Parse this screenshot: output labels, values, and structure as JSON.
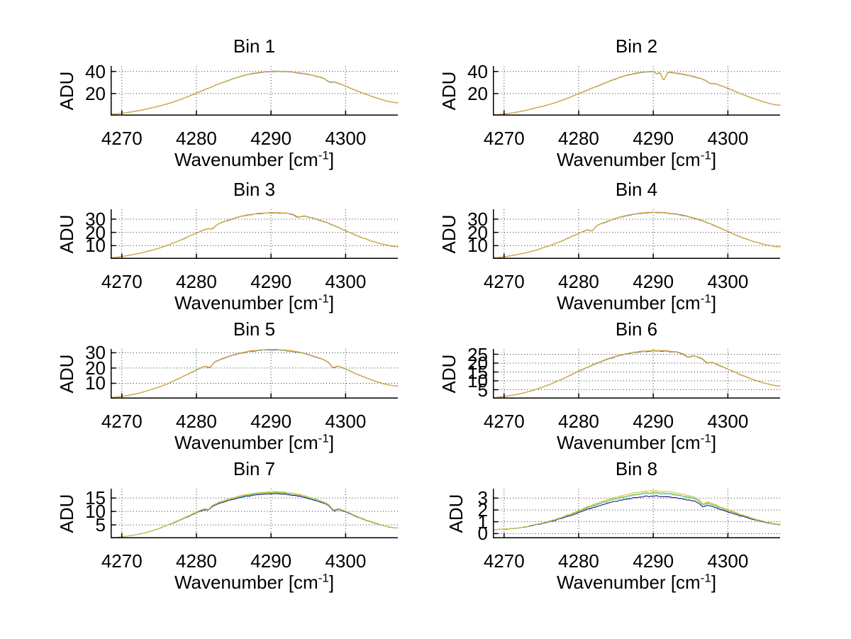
{
  "figure": {
    "background": "#ffffff"
  },
  "chart_data": [
    {
      "type": "line",
      "title": "Bin 1",
      "ylabel": "ADU",
      "xlabel": {
        "prefix": "Wavenumber [cm",
        "sup": "-1",
        "suffix": "]"
      },
      "xlim": [
        4268.5,
        4307
      ],
      "ylim": [
        0,
        45
      ],
      "x_ticks": [
        4270,
        4280,
        4290,
        4300
      ],
      "y_ticks": [
        20,
        40
      ],
      "grid": true,
      "envelope_x": [
        4268.5,
        4270,
        4272,
        4274,
        4276,
        4278,
        4280,
        4282,
        4284,
        4286,
        4288,
        4290,
        4292,
        4294,
        4296,
        4298,
        4300,
        4302,
        4304,
        4306,
        4307
      ],
      "envelope_y": [
        1.2,
        2.2,
        4.2,
        7.0,
        10.5,
        15.0,
        20.5,
        26.0,
        31.3,
        35.8,
        38.8,
        40.2,
        40.1,
        38.6,
        36.0,
        32.0,
        26.8,
        21.3,
        16.4,
        12.6,
        11.8
      ],
      "noise": 0.35,
      "dips": [
        {
          "x": 4297.8,
          "depth": 1.6,
          "width": 0.5
        }
      ],
      "series": [
        {
          "name": "navy",
          "color": "#17177e",
          "offset": -0.3
        },
        {
          "name": "cyan",
          "color": "#6fd8d8",
          "offset": -0.15
        },
        {
          "name": "green",
          "color": "#86c93e",
          "offset": -0.08
        },
        {
          "name": "orange",
          "color": "#e2a33c",
          "offset": 0
        }
      ]
    },
    {
      "type": "line",
      "title": "Bin 2",
      "ylabel": "ADU",
      "xlabel": {
        "prefix": "Wavenumber [cm",
        "sup": "-1",
        "suffix": "]"
      },
      "xlim": [
        4268.5,
        4307
      ],
      "ylim": [
        0,
        45
      ],
      "x_ticks": [
        4270,
        4280,
        4290,
        4300
      ],
      "y_ticks": [
        20,
        40
      ],
      "grid": true,
      "envelope_x": [
        4268.5,
        4270,
        4272,
        4274,
        4276,
        4278,
        4280,
        4282,
        4284,
        4286,
        4288,
        4290,
        4292,
        4294,
        4296,
        4298,
        4300,
        4302,
        4304,
        4306,
        4307
      ],
      "envelope_y": [
        0.8,
        1.5,
        3.5,
        6.5,
        10.0,
        14.5,
        20.0,
        25.5,
        31.0,
        35.8,
        38.8,
        40.2,
        39.6,
        37.6,
        34.5,
        30.0,
        24.8,
        19.2,
        14.3,
        10.4,
        9.5
      ],
      "noise": 0.4,
      "dips": [
        {
          "x": 4291.4,
          "depth": 7.5,
          "width": 0.35
        },
        {
          "x": 4290.5,
          "depth": 2.0,
          "width": 0.3
        },
        {
          "x": 4297.6,
          "depth": 1.6,
          "width": 0.5
        }
      ],
      "series": [
        {
          "name": "navy",
          "color": "#17177e",
          "offset": -0.3
        },
        {
          "name": "cyan",
          "color": "#6fd8d8",
          "offset": -0.15
        },
        {
          "name": "green",
          "color": "#86c93e",
          "offset": -0.08
        },
        {
          "name": "orange",
          "color": "#e2a33c",
          "offset": 0
        }
      ]
    },
    {
      "type": "line",
      "title": "Bin 3",
      "ylabel": "ADU",
      "xlabel": {
        "prefix": "Wavenumber [cm",
        "sup": "-1",
        "suffix": "]"
      },
      "xlim": [
        4268.5,
        4307
      ],
      "ylim": [
        0,
        37.5
      ],
      "x_ticks": [
        4270,
        4280,
        4290,
        4300
      ],
      "y_ticks": [
        10,
        20,
        30
      ],
      "grid": true,
      "envelope_x": [
        4268.5,
        4270,
        4272,
        4274,
        4276,
        4278,
        4280,
        4282,
        4284,
        4286,
        4288,
        4290,
        4292,
        4294,
        4296,
        4298,
        4300,
        4302,
        4304,
        4306,
        4307
      ],
      "envelope_y": [
        0.8,
        1.8,
        3.8,
        6.5,
        10.0,
        14.5,
        19.5,
        24.3,
        28.8,
        32.3,
        34.2,
        35.0,
        34.6,
        33.0,
        30.3,
        26.3,
        21.3,
        16.6,
        12.6,
        9.9,
        9.3
      ],
      "noise": 0.5,
      "dips": [
        {
          "x": 4282.1,
          "depth": 1.6,
          "width": 0.45
        },
        {
          "x": 4293.6,
          "depth": 1.8,
          "width": 0.5
        }
      ],
      "series": [
        {
          "name": "navy",
          "color": "#17177e",
          "offset": -0.3
        },
        {
          "name": "cyan",
          "color": "#6fd8d8",
          "offset": -0.15
        },
        {
          "name": "green",
          "color": "#86c93e",
          "offset": -0.08
        },
        {
          "name": "orange",
          "color": "#e2a33c",
          "offset": 0
        }
      ]
    },
    {
      "type": "line",
      "title": "Bin 4",
      "ylabel": "ADU",
      "xlabel": {
        "prefix": "Wavenumber [cm",
        "sup": "-1",
        "suffix": "]"
      },
      "xlim": [
        4268.5,
        4307
      ],
      "ylim": [
        0,
        37.5
      ],
      "x_ticks": [
        4270,
        4280,
        4290,
        4300
      ],
      "y_ticks": [
        10,
        20,
        30
      ],
      "grid": true,
      "envelope_x": [
        4268.5,
        4270,
        4272,
        4274,
        4276,
        4278,
        4280,
        4282,
        4284,
        4286,
        4288,
        4290,
        4292,
        4294,
        4296,
        4298,
        4300,
        4302,
        4304,
        4306,
        4307
      ],
      "envelope_y": [
        0.8,
        1.6,
        3.5,
        6.2,
        9.8,
        14.2,
        19.3,
        24.3,
        28.8,
        32.4,
        34.4,
        35.2,
        34.7,
        33.0,
        30.0,
        25.8,
        20.8,
        16.0,
        12.3,
        9.7,
        9.2
      ],
      "noise": 0.5,
      "dips": [
        {
          "x": 4281.8,
          "depth": 2.4,
          "width": 0.45
        }
      ],
      "series": [
        {
          "name": "navy",
          "color": "#17177e",
          "offset": -0.3
        },
        {
          "name": "cyan",
          "color": "#6fd8d8",
          "offset": -0.15
        },
        {
          "name": "green",
          "color": "#86c93e",
          "offset": -0.08
        },
        {
          "name": "orange",
          "color": "#e2a33c",
          "offset": 0
        }
      ]
    },
    {
      "type": "line",
      "title": "Bin 5",
      "ylabel": "ADU",
      "xlabel": {
        "prefix": "Wavenumber [cm",
        "sup": "-1",
        "suffix": "]"
      },
      "xlim": [
        4268.5,
        4307
      ],
      "ylim": [
        0,
        32.5
      ],
      "x_ticks": [
        4270,
        4280,
        4290,
        4300
      ],
      "y_ticks": [
        10,
        20,
        30
      ],
      "grid": true,
      "envelope_x": [
        4268.5,
        4270,
        4272,
        4274,
        4276,
        4278,
        4280,
        4282,
        4284,
        4286,
        4288,
        4290,
        4292,
        4294,
        4296,
        4298,
        4300,
        4302,
        4304,
        4306,
        4307
      ],
      "envelope_y": [
        0.7,
        1.5,
        3.2,
        6.0,
        9.5,
        14.0,
        18.8,
        23.3,
        27.2,
        30.1,
        31.6,
        32.1,
        31.7,
        30.2,
        27.4,
        23.7,
        19.4,
        15.1,
        11.4,
        8.8,
        8.3
      ],
      "noise": 0.45,
      "dips": [
        {
          "x": 4281.8,
          "depth": 2.2,
          "width": 0.45
        },
        {
          "x": 4298.3,
          "depth": 2.6,
          "width": 0.5
        }
      ],
      "series": [
        {
          "name": "navy",
          "color": "#17177e",
          "offset": -0.3
        },
        {
          "name": "cyan",
          "color": "#6fd8d8",
          "offset": -0.15
        },
        {
          "name": "green",
          "color": "#86c93e",
          "offset": -0.08
        },
        {
          "name": "orange",
          "color": "#e2a33c",
          "offset": 0
        }
      ]
    },
    {
      "type": "line",
      "title": "Bin 6",
      "ylabel": "ADU",
      "xlabel": {
        "prefix": "Wavenumber [cm",
        "sup": "-1",
        "suffix": "]"
      },
      "xlim": [
        4268.5,
        4307
      ],
      "ylim": [
        0,
        28
      ],
      "x_ticks": [
        4270,
        4280,
        4290,
        4300
      ],
      "y_ticks": [
        5,
        10,
        15,
        20,
        25
      ],
      "grid": true,
      "envelope_x": [
        4268.5,
        4270,
        4272,
        4274,
        4276,
        4278,
        4280,
        4282,
        4284,
        4286,
        4288,
        4290,
        4292,
        4294,
        4296,
        4298,
        4300,
        4302,
        4304,
        4306,
        4307
      ],
      "envelope_y": [
        0.5,
        1.2,
        2.6,
        4.8,
        7.8,
        11.5,
        15.5,
        19.3,
        22.6,
        25.0,
        26.4,
        27.1,
        26.9,
        25.7,
        23.5,
        20.4,
        16.7,
        13.1,
        9.9,
        7.7,
        7.1
      ],
      "noise": 0.4,
      "dips": [
        {
          "x": 4294.6,
          "depth": 1.5,
          "width": 0.5
        },
        {
          "x": 4297.2,
          "depth": 1.4,
          "width": 0.45
        }
      ],
      "series": [
        {
          "name": "navy",
          "color": "#17177e",
          "offset": -0.3
        },
        {
          "name": "cyan",
          "color": "#6fd8d8",
          "offset": -0.15
        },
        {
          "name": "green",
          "color": "#86c93e",
          "offset": -0.08
        },
        {
          "name": "orange",
          "color": "#e2a33c",
          "offset": 0
        }
      ]
    },
    {
      "type": "line",
      "title": "Bin 7",
      "ylabel": "ADU",
      "xlabel": {
        "prefix": "Wavenumber [cm",
        "sup": "-1",
        "suffix": "]"
      },
      "xlim": [
        4268.5,
        4307
      ],
      "ylim": [
        0,
        18.5
      ],
      "x_ticks": [
        4270,
        4280,
        4290,
        4300
      ],
      "y_ticks": [
        5,
        10,
        15
      ],
      "grid": true,
      "envelope_x": [
        4268.5,
        4270,
        4272,
        4274,
        4276,
        4278,
        4280,
        4282,
        4284,
        4286,
        4288,
        4290,
        4292,
        4294,
        4296,
        4298,
        4300,
        4302,
        4304,
        4306,
        4307
      ],
      "envelope_y": [
        0.3,
        0.6,
        1.4,
        2.8,
        4.8,
        7.2,
        9.8,
        12.3,
        14.4,
        15.9,
        16.9,
        17.3,
        17.1,
        16.2,
        14.6,
        12.5,
        10.1,
        7.7,
        5.7,
        4.2,
        3.9
      ],
      "noise": 0.28,
      "dips": [
        {
          "x": 4281.6,
          "depth": 0.9,
          "width": 0.4
        },
        {
          "x": 4298.4,
          "depth": 1.3,
          "width": 0.5
        }
      ],
      "series": [
        {
          "name": "navy",
          "color": "#17177e",
          "offset": -0.75
        },
        {
          "name": "cyan",
          "color": "#6fd8d8",
          "offset": -0.4
        },
        {
          "name": "green",
          "color": "#86c93e",
          "offset": -0.22
        },
        {
          "name": "orange",
          "color": "#ddc04a",
          "offset": 0
        }
      ]
    },
    {
      "type": "line",
      "title": "Bin 8",
      "ylabel": "ADU",
      "xlabel": {
        "prefix": "Wavenumber [cm",
        "sup": "-1",
        "suffix": "]"
      },
      "xlim": [
        4268.5,
        4307
      ],
      "ylim": [
        -0.4,
        3.8
      ],
      "x_ticks": [
        4270,
        4280,
        4290,
        4300
      ],
      "y_ticks": [
        0,
        1,
        2,
        3
      ],
      "grid": true,
      "envelope_x": [
        4268.5,
        4270,
        4272,
        4274,
        4276,
        4278,
        4280,
        4282,
        4284,
        4286,
        4288,
        4290,
        4292,
        4294,
        4296,
        4298,
        4300,
        4302,
        4304,
        4306,
        4307
      ],
      "envelope_y": [
        0.35,
        0.38,
        0.5,
        0.75,
        1.05,
        1.45,
        1.95,
        2.45,
        2.9,
        3.25,
        3.5,
        3.62,
        3.55,
        3.33,
        2.98,
        2.52,
        2.02,
        1.58,
        1.18,
        0.88,
        0.8
      ],
      "noise": 0.1,
      "dips": [
        {
          "x": 4296.6,
          "depth": 0.28,
          "width": 0.45
        }
      ],
      "series": [
        {
          "name": "navy",
          "color": "#17177e",
          "offset": -0.45
        },
        {
          "name": "cyan",
          "color": "#6fd8d8",
          "offset": -0.22
        },
        {
          "name": "green",
          "color": "#86c93e",
          "offset": -0.15
        },
        {
          "name": "orange",
          "color": "#ddc04a",
          "offset": 0
        }
      ]
    }
  ]
}
